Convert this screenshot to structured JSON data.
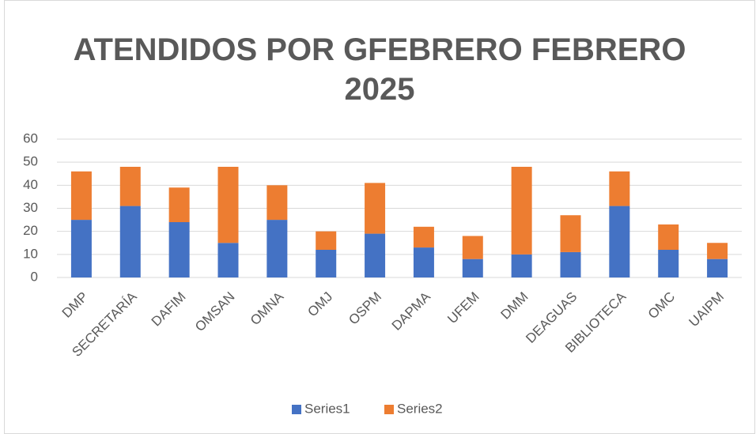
{
  "chart_data": {
    "type": "stacked_bar",
    "title": "ATENDIDOS POR GFEBRERO FEBRERO 2025",
    "categories": [
      "DMP",
      "SECRETARÍA",
      "DAFIM",
      "OMSAN",
      "OMNA",
      "OMJ",
      "OSPM",
      "DAPMA",
      "UFEM",
      "DMM",
      "DEAGUAS",
      "BIBLIOTECA",
      "OMC",
      "UAIPM"
    ],
    "series": [
      {
        "name": "Series1",
        "color": "#4472c4",
        "values": [
          25,
          31,
          24,
          15,
          25,
          12,
          19,
          13,
          8,
          10,
          11,
          31,
          12,
          8
        ]
      },
      {
        "name": "Series2",
        "color": "#ed7d31",
        "values": [
          21,
          17,
          15,
          33,
          15,
          8,
          22,
          9,
          10,
          38,
          16,
          15,
          11,
          7
        ]
      }
    ],
    "ylim": [
      0,
      60
    ],
    "yticks": [
      0,
      10,
      20,
      30,
      40,
      50,
      60
    ],
    "grid": true,
    "legend": "bottom"
  }
}
